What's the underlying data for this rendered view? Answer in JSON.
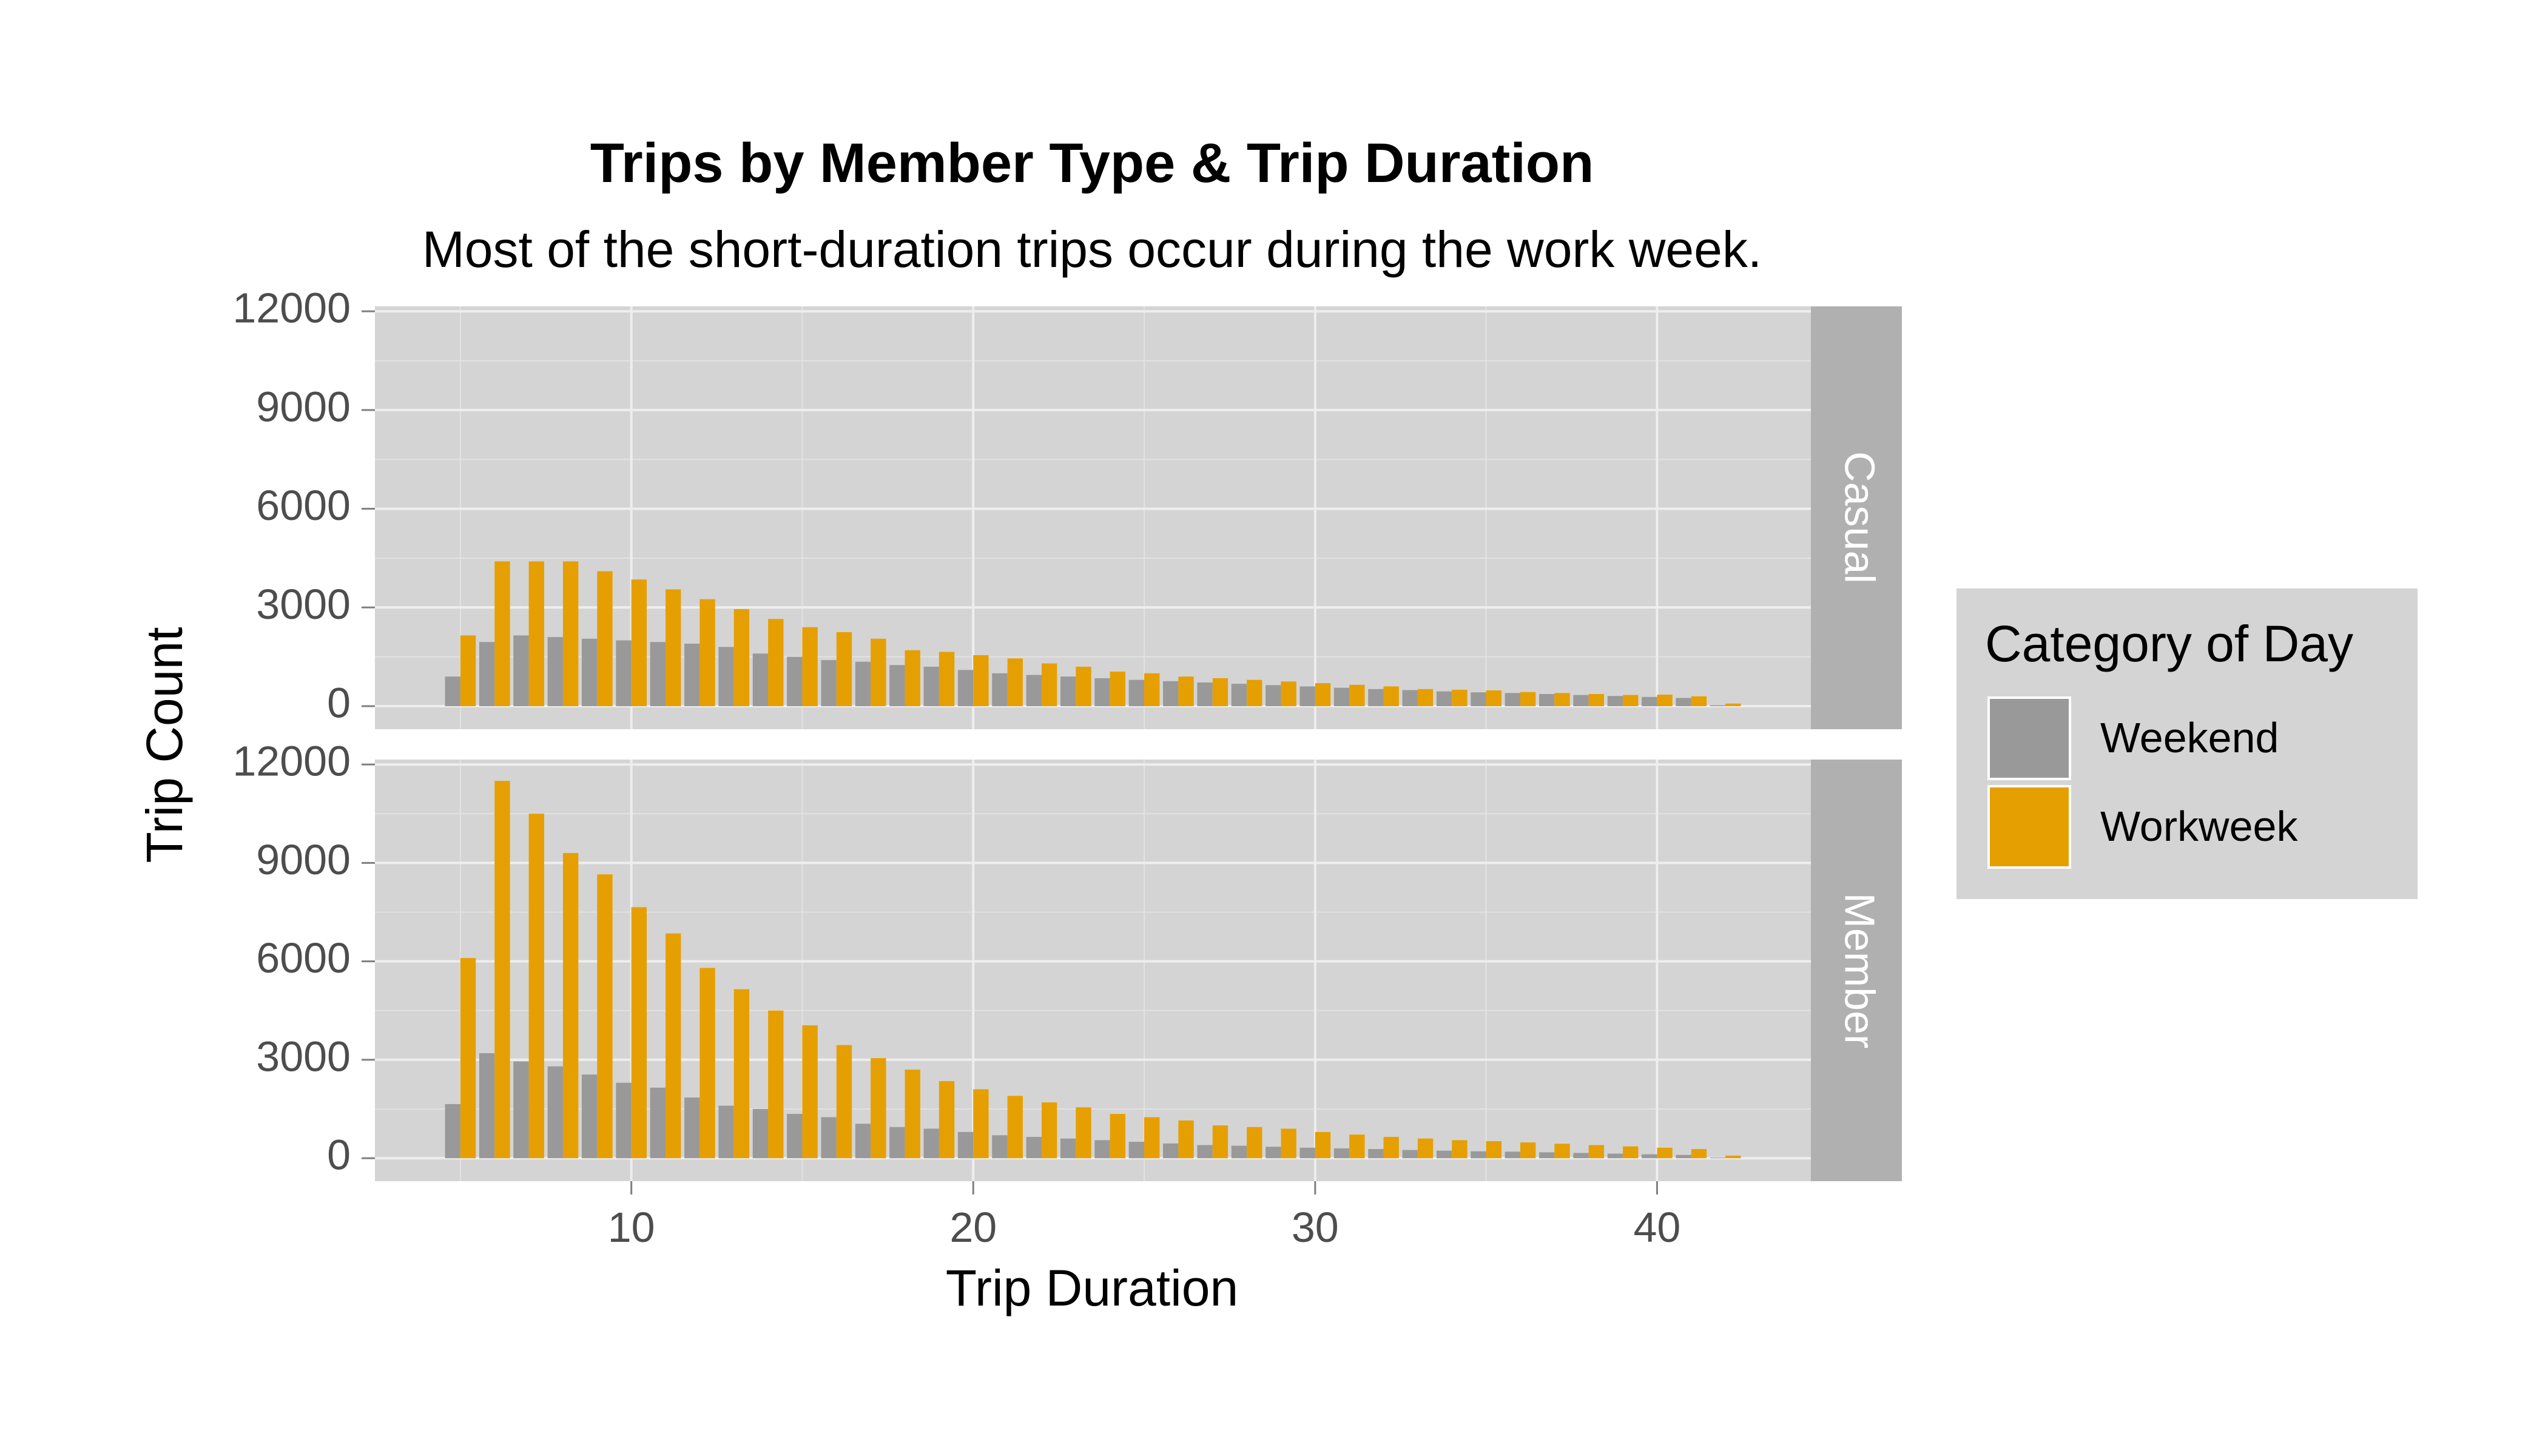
{
  "chart_data": {
    "type": "bar",
    "title": "Trips by Member Type & Trip Duration",
    "subtitle": "Most of the short-duration trips occur during the work week.",
    "xlabel": "Trip Duration",
    "ylabel": "Trip Count",
    "xlim": [
      2.5,
      44.5
    ],
    "ylim": [
      -700,
      12150
    ],
    "x_ticks": [
      10,
      20,
      30,
      40
    ],
    "x_tick_labels": [
      "10",
      "20",
      "30",
      "40"
    ],
    "y_ticks": [
      0,
      3000,
      6000,
      9000,
      12000
    ],
    "y_tick_labels": [
      "0",
      "3000",
      "6000",
      "9000",
      "12000"
    ],
    "grid": true,
    "legend": {
      "title": "Category of Day",
      "position": "right",
      "entries": [
        {
          "label": "Weekend",
          "color": "#999999"
        },
        {
          "label": "Workweek",
          "color": "#E69F00"
        }
      ]
    },
    "x": [
      5,
      6,
      7,
      8,
      9,
      10,
      11,
      12,
      13,
      14,
      15,
      16,
      17,
      18,
      19,
      20,
      21,
      22,
      23,
      24,
      25,
      26,
      27,
      28,
      29,
      30,
      31,
      32,
      33,
      34,
      35,
      36,
      37,
      38,
      39,
      40,
      41,
      42
    ],
    "panels": [
      {
        "label": "Casual",
        "series": [
          {
            "name": "Weekend",
            "color": "#999999",
            "values": [
              900,
              1950,
              2150,
              2100,
              2050,
              2000,
              1950,
              1900,
              1800,
              1600,
              1500,
              1400,
              1350,
              1250,
              1200,
              1100,
              1000,
              950,
              900,
              850,
              800,
              760,
              720,
              680,
              640,
              600,
              560,
              520,
              490,
              450,
              420,
              400,
              370,
              340,
              310,
              280,
              250,
              30
            ]
          },
          {
            "name": "Workweek",
            "color": "#E69F00",
            "values": [
              2150,
              4400,
              4400,
              4400,
              4100,
              3850,
              3550,
              3250,
              2950,
              2650,
              2400,
              2250,
              2050,
              1700,
              1650,
              1550,
              1450,
              1300,
              1200,
              1050,
              1000,
              900,
              850,
              800,
              750,
              700,
              650,
              600,
              520,
              500,
              480,
              430,
              400,
              370,
              340,
              350,
              300,
              80
            ]
          }
        ]
      },
      {
        "label": "Member",
        "series": [
          {
            "name": "Weekend",
            "color": "#999999",
            "values": [
              1650,
              3200,
              2950,
              2800,
              2550,
              2300,
              2150,
              1850,
              1600,
              1500,
              1350,
              1250,
              1050,
              950,
              900,
              800,
              700,
              650,
              600,
              550,
              500,
              450,
              400,
              380,
              350,
              320,
              300,
              280,
              250,
              230,
              210,
              200,
              180,
              160,
              140,
              120,
              100,
              20
            ]
          },
          {
            "name": "Workweek",
            "color": "#E69F00",
            "values": [
              6100,
              11500,
              10500,
              9300,
              8650,
              7650,
              6850,
              5800,
              5150,
              4500,
              4050,
              3450,
              3050,
              2700,
              2350,
              2100,
              1900,
              1700,
              1550,
              1350,
              1250,
              1150,
              1000,
              950,
              900,
              800,
              720,
              650,
              600,
              550,
              520,
              480,
              440,
              400,
              360,
              320,
              280,
              80
            ]
          }
        ]
      }
    ]
  }
}
